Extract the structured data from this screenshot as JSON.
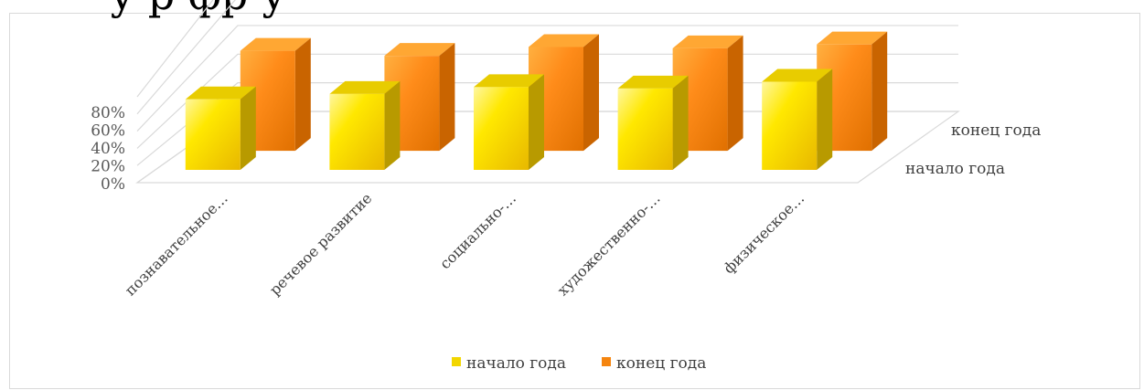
{
  "page": {
    "heading_fragment": "у                                р                                  фр                                   у"
  },
  "chart_data": {
    "type": "bar",
    "three_d": true,
    "title": "",
    "categories": [
      "познавательное…",
      "речевое развитие",
      "социально-…",
      "художественно-…",
      "физическое…"
    ],
    "series": [
      {
        "name": "начало года",
        "values": [
          0.52,
          0.56,
          0.61,
          0.6,
          0.65
        ],
        "color": "#f2d600"
      },
      {
        "name": "конец года",
        "values": [
          0.79,
          0.75,
          0.82,
          0.81,
          0.84
        ],
        "color": "#f5850f"
      }
    ],
    "y_ticks": [
      "0%",
      "20%",
      "40%",
      "60%",
      "80%"
    ],
    "ylim": [
      0,
      1.0
    ],
    "grid": true,
    "legend_position": "bottom"
  }
}
